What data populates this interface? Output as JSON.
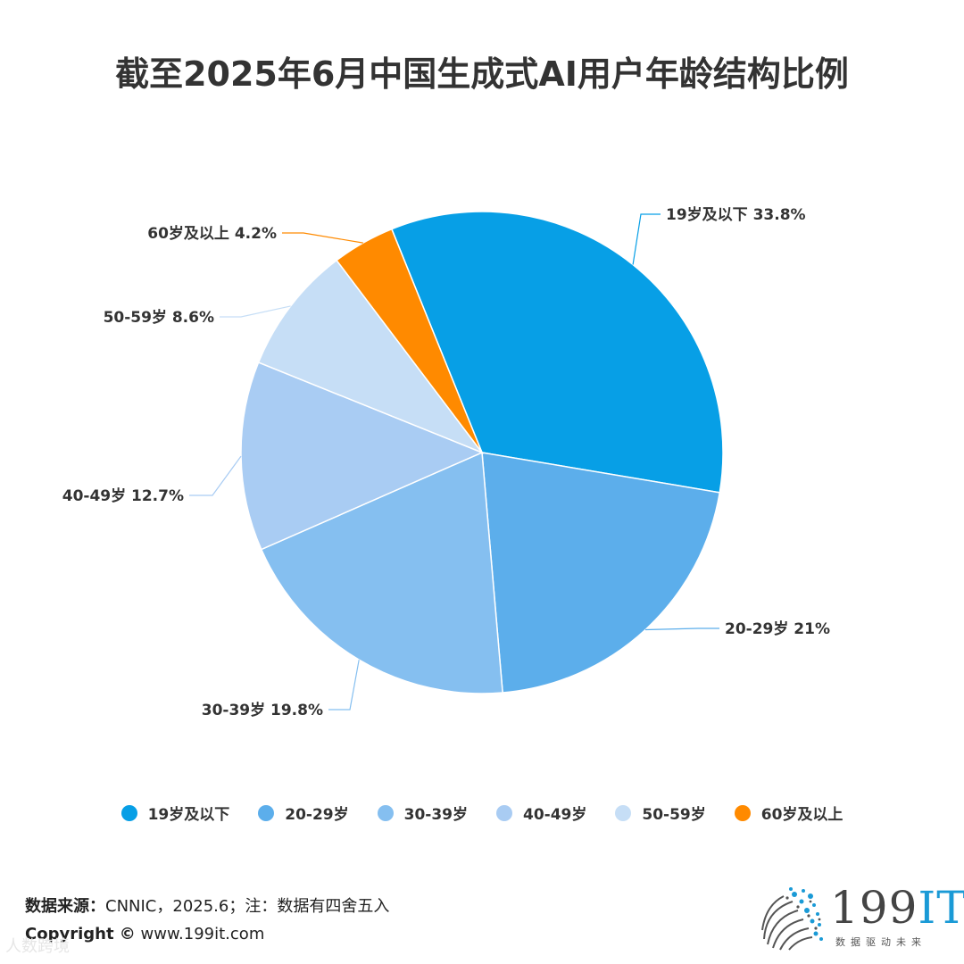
{
  "title": "截至2025年6月中国生成式AI用户年龄结构比例",
  "chart_data": {
    "type": "pie",
    "title": "截至2025年6月中国生成式AI用户年龄结构比例",
    "slices": [
      {
        "label": "19岁及以下",
        "value": 33.8,
        "display": "19岁及以下 33.8%",
        "color": "#079fe6"
      },
      {
        "label": "20-29岁",
        "value": 21,
        "display": "20-29岁 21%",
        "color": "#5caeeb"
      },
      {
        "label": "30-39岁",
        "value": 19.8,
        "display": "30-39岁 19.8%",
        "color": "#85bff0"
      },
      {
        "label": "40-49岁",
        "value": 12.7,
        "display": "40-49岁 12.7%",
        "color": "#a9ccf3"
      },
      {
        "label": "50-59岁",
        "value": 8.6,
        "display": "50-59岁 8.6%",
        "color": "#c6def6"
      },
      {
        "label": "60岁及以上",
        "value": 4.2,
        "display": "60岁及以上 4.2%",
        "color": "#ff8a00"
      }
    ],
    "legend_position": "bottom"
  },
  "source": {
    "label": "数据来源：",
    "text": "CNNIC，2025.6；注：数据有四舍五入"
  },
  "copyright": {
    "label": "Copyright ©",
    "text": " www.199it.com"
  },
  "logo": {
    "main": "199",
    "accent": "IT",
    "tagline": "数据驱动未来"
  },
  "watermark": "人数跨境",
  "icons": {
    "logo": "dot-sphere-logo-icon"
  }
}
